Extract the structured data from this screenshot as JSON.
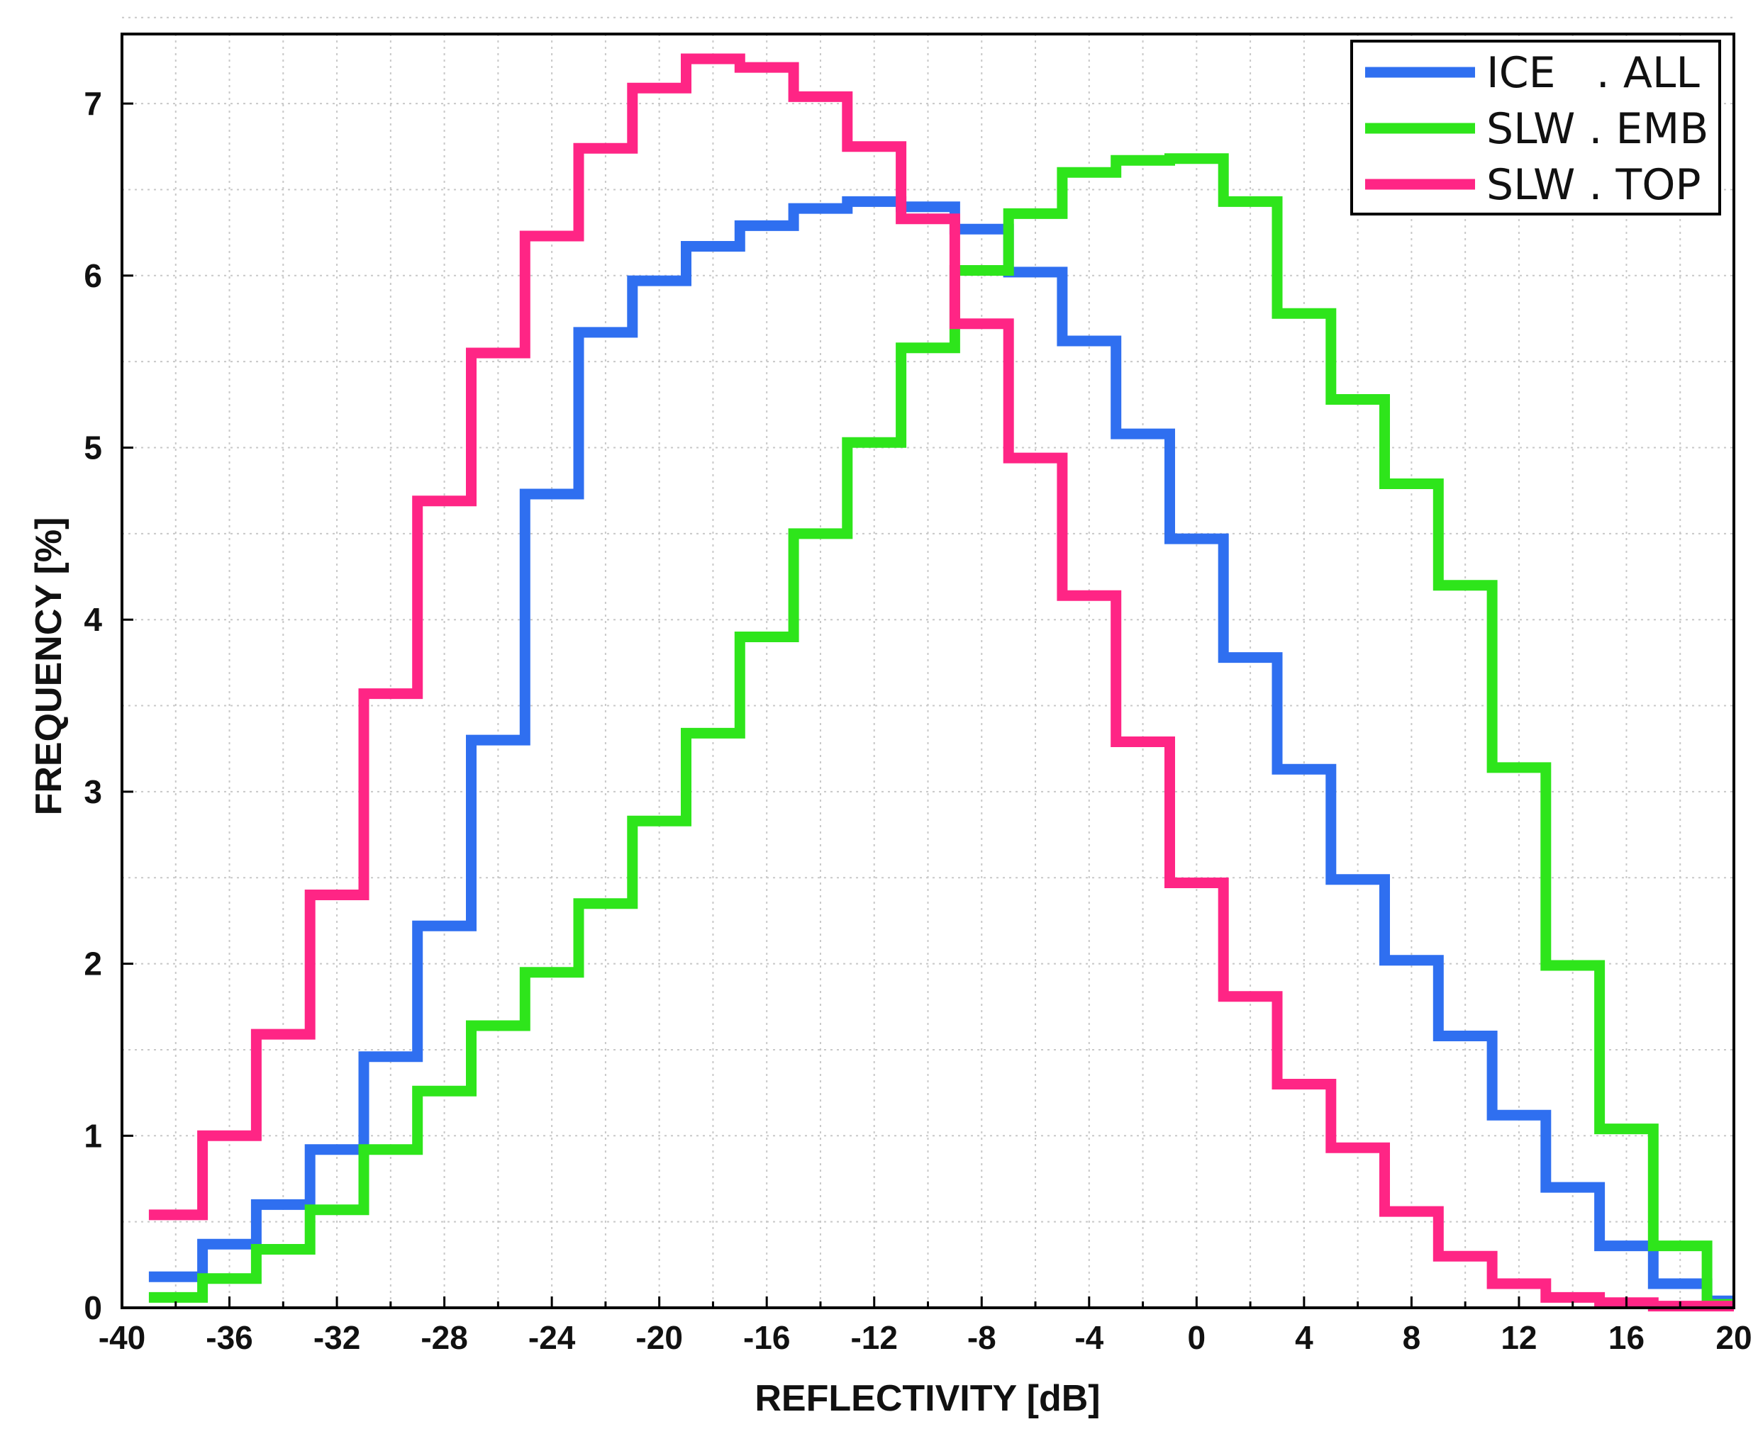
{
  "chart_data": {
    "type": "line",
    "style": "step",
    "xlabel": "REFLECTIVITY  [dB]",
    "ylabel": "FREQUENCY  [%]",
    "xlim": [
      -40,
      20
    ],
    "ylim": [
      0,
      7.6
    ],
    "x_ticks": [
      -40,
      -36,
      -32,
      -28,
      -24,
      -20,
      -16,
      -12,
      -8,
      -4,
      0,
      4,
      8,
      12,
      16,
      20
    ],
    "y_ticks": [
      0,
      1,
      2,
      3,
      4,
      5,
      6,
      7
    ],
    "grid": true,
    "legend_position": "top-right",
    "bin_edges": [
      -39,
      -37,
      -35,
      -33,
      -31,
      -29,
      -27,
      -25,
      -23,
      -21,
      -19,
      -17,
      -15,
      -13,
      -11,
      -9,
      -7,
      -5,
      -3,
      -1,
      1,
      3,
      5,
      7,
      9,
      11,
      13,
      15,
      17,
      19,
      20
    ],
    "series": [
      {
        "name": "ICE   . ALL",
        "color": "#2f6ff0",
        "values": [
          0.18,
          0.37,
          0.6,
          0.92,
          1.46,
          2.22,
          3.3,
          4.73,
          5.67,
          5.97,
          6.17,
          6.29,
          6.39,
          6.43,
          6.4,
          6.27,
          6.02,
          5.62,
          5.08,
          4.47,
          3.78,
          3.13,
          2.49,
          2.02,
          1.58,
          1.12,
          0.7,
          0.36,
          0.14,
          0.04
        ]
      },
      {
        "name": "SLW . EMB",
        "color": "#2ee51b",
        "values": [
          0.06,
          0.17,
          0.34,
          0.57,
          0.92,
          1.26,
          1.64,
          1.95,
          2.35,
          2.83,
          3.34,
          3.9,
          4.5,
          5.03,
          5.58,
          6.03,
          6.36,
          6.6,
          6.67,
          6.68,
          6.43,
          5.78,
          5.28,
          4.79,
          4.2,
          3.14,
          1.99,
          1.04,
          0.36,
          0.02
        ]
      },
      {
        "name": "SLW . TOP",
        "color": "#ff2585",
        "values": [
          0.54,
          1.0,
          1.59,
          2.4,
          3.57,
          4.69,
          5.55,
          6.23,
          6.74,
          7.09,
          7.26,
          7.21,
          7.04,
          6.75,
          6.33,
          5.72,
          4.94,
          4.14,
          3.29,
          2.47,
          1.81,
          1.3,
          0.93,
          0.56,
          0.3,
          0.14,
          0.06,
          0.03,
          0.01,
          0.01
        ]
      }
    ]
  }
}
